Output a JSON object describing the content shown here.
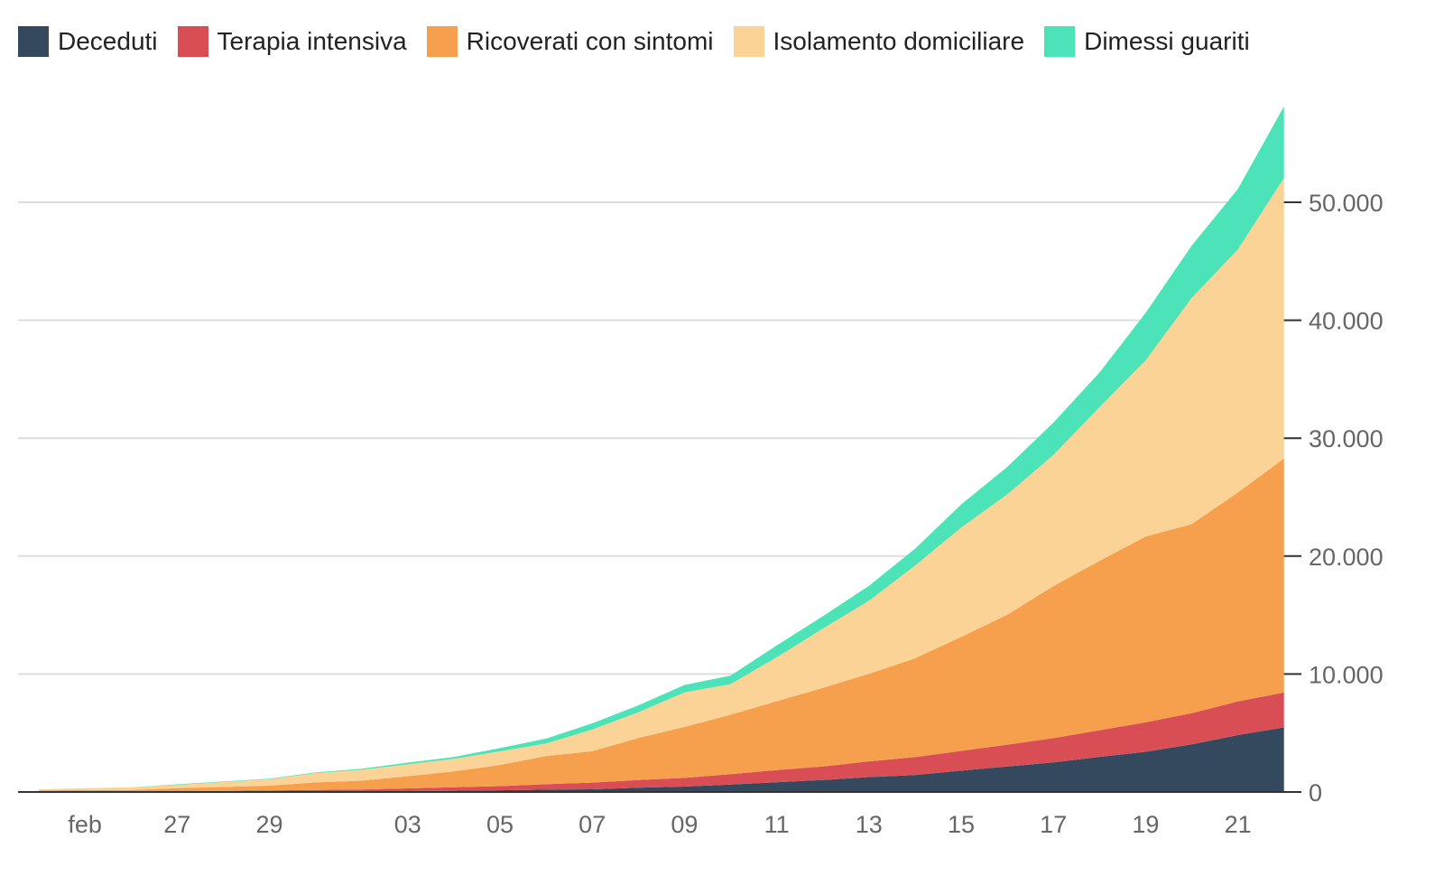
{
  "chart_data": {
    "type": "area",
    "stacked": true,
    "x_tick_labels": [
      "feb",
      "27",
      "29",
      "03",
      "05",
      "07",
      "09",
      "11",
      "13",
      "15",
      "17",
      "19",
      "21"
    ],
    "x_tick_days": [
      1,
      3,
      5,
      8,
      10,
      12,
      14,
      16,
      18,
      20,
      22,
      24,
      26
    ],
    "x_days": [
      0,
      1,
      2,
      3,
      4,
      5,
      6,
      7,
      8,
      9,
      10,
      11,
      12,
      13,
      14,
      15,
      16,
      17,
      18,
      19,
      20,
      21,
      22,
      23,
      24,
      25,
      26,
      27
    ],
    "ylim": [
      0,
      60000
    ],
    "y_ticks": [
      0,
      10000,
      20000,
      30000,
      40000,
      50000
    ],
    "y_tick_labels": [
      "0",
      "10.000",
      "20.000",
      "30.000",
      "40.000",
      "50.000"
    ],
    "grid": true,
    "legend_position": "top-left",
    "series": [
      {
        "name": "Deceduti",
        "color": "#34495e",
        "values": [
          7,
          10,
          12,
          17,
          21,
          29,
          34,
          52,
          79,
          107,
          148,
          197,
          233,
          366,
          463,
          631,
          827,
          1016,
          1266,
          1441,
          1809,
          2158,
          2503,
          2978,
          3405,
          4032,
          4825,
          5476
        ]
      },
      {
        "name": "Terapia intensiva",
        "color": "#d94e55",
        "values": [
          26,
          35,
          36,
          56,
          64,
          105,
          140,
          166,
          229,
          295,
          351,
          462,
          567,
          650,
          733,
          877,
          1028,
          1153,
          1328,
          1518,
          1672,
          1851,
          2060,
          2257,
          2498,
          2655,
          2857,
          2957
        ]
      },
      {
        "name": "Ricoverati con sintomi",
        "color": "#f6a04d",
        "values": [
          101,
          114,
          128,
          248,
          345,
          401,
          639,
          742,
          1034,
          1346,
          1790,
          2394,
          2651,
          3557,
          4316,
          5038,
          5838,
          6650,
          7426,
          8372,
          9663,
          11025,
          12894,
          14363,
          15757,
          16020,
          17708,
          19846
        ]
      },
      {
        "name": "Isolamento domiciliare",
        "color": "#fbd397",
        "values": [
          94,
          162,
          221,
          284,
          412,
          543,
          798,
          927,
          1000,
          1065,
          1155,
          1060,
          1843,
          2180,
          2936,
          2599,
          3724,
          5036,
          6201,
          7860,
          9268,
          10197,
          11108,
          13030,
          14935,
          19185,
          20603,
          23783
        ]
      },
      {
        "name": "Dimessi guariti",
        "color": "#4de3b8",
        "values": [
          1,
          1,
          3,
          45,
          46,
          46,
          50,
          83,
          149,
          160,
          276,
          414,
          523,
          589,
          622,
          724,
          1004,
          1045,
          1258,
          1439,
          1966,
          2335,
          2749,
          2941,
          4025,
          4440,
          5129,
          6072
        ]
      }
    ]
  }
}
